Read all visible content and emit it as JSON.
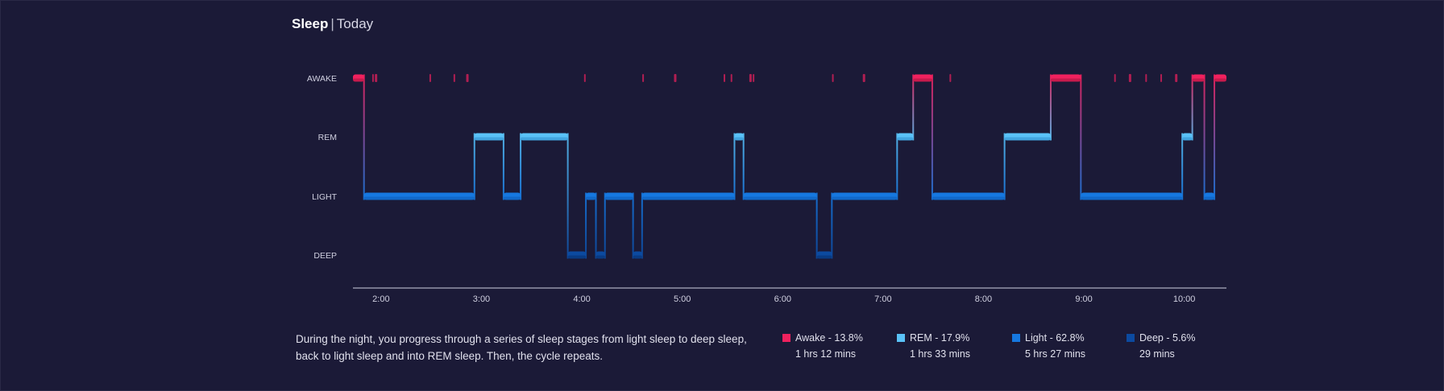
{
  "header": {
    "title": "Sleep",
    "separator": "|",
    "period": "Today"
  },
  "description": "During the night, you progress through a series of sleep stages from light sleep to deep sleep, back to light sleep and into REM sleep. Then, the cycle repeats.",
  "colors": {
    "background": "#1b1a37",
    "awake": "#f0215e",
    "rem": "#5ac2f7",
    "light": "#1678e0",
    "deep": "#0c4aa0"
  },
  "legend": [
    {
      "label": "Awake - 13.8%",
      "duration": "1 hrs 12 mins",
      "color": "#f0215e"
    },
    {
      "label": "REM - 17.9%",
      "duration": "1 hrs 33 mins",
      "color": "#5ac2f7"
    },
    {
      "label": "Light - 62.8%",
      "duration": "5 hrs 27 mins",
      "color": "#1678e0"
    },
    {
      "label": "Deep - 5.6%",
      "duration": "29 mins",
      "color": "#0c4aa0"
    }
  ],
  "chart_data": {
    "type": "line",
    "y_categories": [
      "AWAKE",
      "REM",
      "LIGHT",
      "DEEP"
    ],
    "x_ticks": [
      "2:00",
      "3:00",
      "4:00",
      "5:00",
      "6:00",
      "7:00",
      "8:00",
      "9:00",
      "10:00"
    ],
    "x_range_hours": [
      1.72,
      10.42
    ],
    "segments": [
      {
        "stage": "AWAKE",
        "start": 1.72,
        "end": 1.83
      },
      {
        "stage": "LIGHT",
        "start": 1.83,
        "end": 2.93
      },
      {
        "stage": "REM",
        "start": 2.93,
        "end": 3.22
      },
      {
        "stage": "LIGHT",
        "start": 3.22,
        "end": 3.39
      },
      {
        "stage": "REM",
        "start": 3.39,
        "end": 3.86
      },
      {
        "stage": "DEEP",
        "start": 3.86,
        "end": 4.04
      },
      {
        "stage": "LIGHT",
        "start": 4.04,
        "end": 4.14
      },
      {
        "stage": "DEEP",
        "start": 4.14,
        "end": 4.23
      },
      {
        "stage": "LIGHT",
        "start": 4.23,
        "end": 4.51
      },
      {
        "stage": "DEEP",
        "start": 4.51,
        "end": 4.6
      },
      {
        "stage": "LIGHT",
        "start": 4.6,
        "end": 5.52
      },
      {
        "stage": "REM",
        "start": 5.52,
        "end": 5.61
      },
      {
        "stage": "LIGHT",
        "start": 5.61,
        "end": 6.34
      },
      {
        "stage": "DEEP",
        "start": 6.34,
        "end": 6.49
      },
      {
        "stage": "LIGHT",
        "start": 6.49,
        "end": 7.14
      },
      {
        "stage": "REM",
        "start": 7.14,
        "end": 7.3
      },
      {
        "stage": "AWAKE",
        "start": 7.3,
        "end": 7.49
      },
      {
        "stage": "LIGHT",
        "start": 7.49,
        "end": 8.21
      },
      {
        "stage": "REM",
        "start": 8.21,
        "end": 8.67
      },
      {
        "stage": "AWAKE",
        "start": 8.67,
        "end": 8.97
      },
      {
        "stage": "LIGHT",
        "start": 8.97,
        "end": 9.98
      },
      {
        "stage": "REM",
        "start": 9.98,
        "end": 10.08
      },
      {
        "stage": "AWAKE",
        "start": 10.08,
        "end": 10.2
      },
      {
        "stage": "LIGHT",
        "start": 10.2,
        "end": 10.3
      },
      {
        "stage": "AWAKE",
        "start": 10.3,
        "end": 10.42
      }
    ],
    "brief_awakenings": [
      1.92,
      1.95,
      2.49,
      2.73,
      2.86,
      4.03,
      4.61,
      4.93,
      5.42,
      5.49,
      5.68,
      5.71,
      6.5,
      6.81,
      7.67,
      9.31,
      9.46,
      9.62,
      9.77,
      9.92
    ]
  }
}
